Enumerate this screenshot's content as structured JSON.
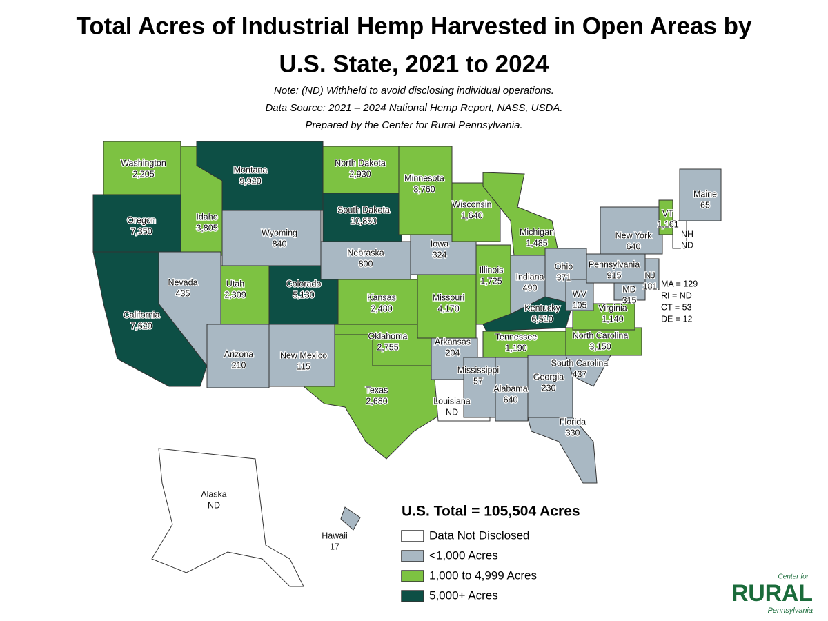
{
  "header": {
    "title": [
      "Total Acres of Industrial Hemp Harvested in Open Areas by",
      "U.S. State, 2021 to 2024"
    ],
    "notes": [
      "Note: (ND) Withheld to avoid disclosing individual operations.",
      "Data Source: 2021 – 2024 National Hemp Report, NASS, USDA.",
      "Prepared by the Center for Rural Pennsylvania."
    ]
  },
  "states": [
    {
      "name": "Washington",
      "value": "2,205",
      "color": "#7dc242"
    },
    {
      "name": "Oregon",
      "value": "7,350",
      "color": "#0d4f45"
    },
    {
      "name": "California",
      "value": "7,620",
      "color": "#0d4f45"
    },
    {
      "name": "Idaho",
      "value": "3,805",
      "color": "#7dc242"
    },
    {
      "name": "Nevada",
      "value": "435",
      "color": "#a9b8c3"
    },
    {
      "name": "Montana",
      "value": "9,920",
      "color": "#0d4f45"
    },
    {
      "name": "Wyoming",
      "value": "840",
      "color": "#a9b8c3"
    },
    {
      "name": "Utah",
      "value": "2,309",
      "color": "#7dc242"
    },
    {
      "name": "Arizona",
      "value": "210",
      "color": "#a9b8c3"
    },
    {
      "name": "Colorado",
      "value": "5,130",
      "color": "#0d4f45"
    },
    {
      "name": "New Mexico",
      "value": "115",
      "color": "#a9b8c3"
    },
    {
      "name": "North Dakota",
      "value": "2,930",
      "color": "#7dc242"
    },
    {
      "name": "South Dakota",
      "value": "10,850",
      "color": "#0d4f45"
    },
    {
      "name": "Nebraska",
      "value": "800",
      "color": "#a9b8c3"
    },
    {
      "name": "Kansas",
      "value": "2,480",
      "color": "#7dc242"
    },
    {
      "name": "Oklahoma",
      "value": "2,755",
      "color": "#7dc242"
    },
    {
      "name": "Texas",
      "value": "2,680",
      "color": "#7dc242"
    },
    {
      "name": "Minnesota",
      "value": "3,760",
      "color": "#7dc242"
    },
    {
      "name": "Iowa",
      "value": "324",
      "color": "#a9b8c3"
    },
    {
      "name": "Missouri",
      "value": "4,170",
      "color": "#7dc242"
    },
    {
      "name": "Arkansas",
      "value": "204",
      "color": "#a9b8c3"
    },
    {
      "name": "Louisiana",
      "value": "ND",
      "color": "#ffffff"
    },
    {
      "name": "Wisconsin",
      "value": "1,640",
      "color": "#7dc242"
    },
    {
      "name": "Illinois",
      "value": "1,725",
      "color": "#7dc242"
    },
    {
      "name": "Michigan",
      "value": "1,485",
      "color": "#7dc242"
    },
    {
      "name": "Indiana",
      "value": "490",
      "color": "#a9b8c3"
    },
    {
      "name": "Ohio",
      "value": "371",
      "color": "#a9b8c3"
    },
    {
      "name": "Kentucky",
      "value": "6,510",
      "color": "#0d4f45"
    },
    {
      "name": "Tennessee",
      "value": "1,190",
      "color": "#7dc242"
    },
    {
      "name": "Mississippi",
      "value": "57",
      "color": "#a9b8c3"
    },
    {
      "name": "Alabama",
      "value": "640",
      "color": "#a9b8c3"
    },
    {
      "name": "Georgia",
      "value": "230",
      "color": "#a9b8c3"
    },
    {
      "name": "Florida",
      "value": "330",
      "color": "#a9b8c3"
    },
    {
      "name": "South Carolina",
      "value": "437",
      "color": "#a9b8c3"
    },
    {
      "name": "North Carolina",
      "value": "3,150",
      "color": "#7dc242"
    },
    {
      "name": "Virginia",
      "value": "1,140",
      "color": "#7dc242"
    },
    {
      "name": "WV",
      "value": "105",
      "color": "#a9b8c3"
    },
    {
      "name": "Pennsylvania",
      "value": "915",
      "color": "#a9b8c3"
    },
    {
      "name": "New York",
      "value": "640",
      "color": "#a9b8c3"
    },
    {
      "name": "MD",
      "value": "315",
      "color": "#a9b8c3"
    },
    {
      "name": "NJ",
      "value": "181",
      "color": "#a9b8c3"
    },
    {
      "name": "VT",
      "value": "1,161",
      "color": "#7dc242"
    },
    {
      "name": "NH",
      "value": "ND",
      "color": "#ffffff"
    },
    {
      "name": "Maine",
      "value": "65",
      "color": "#a9b8c3"
    },
    {
      "name": "Alaska",
      "value": "ND",
      "color": "#ffffff"
    },
    {
      "name": "Hawaii",
      "value": "17",
      "color": "#a9b8c3"
    }
  ],
  "small_states": [
    "MA = 129",
    "RI = ND",
    "CT = 53",
    "DE = 12"
  ],
  "total": "U.S. Total = 105,504 Acres",
  "legend": [
    {
      "label": "Data Not Disclosed",
      "color": "#ffffff"
    },
    {
      "label": "<1,000 Acres",
      "color": "#a9b8c3"
    },
    {
      "label": "1,000 to 4,999 Acres",
      "color": "#7dc242"
    },
    {
      "label": "5,000+ Acres",
      "color": "#0d4f45"
    }
  ],
  "logo": {
    "top": "Center for",
    "main": "RURAL",
    "bottom": "Pennsylvania"
  }
}
